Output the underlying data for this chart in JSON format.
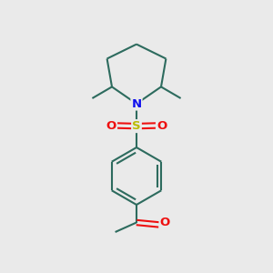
{
  "background_color": "#eaeaea",
  "bond_color": "#2d6b5e",
  "N_color": "#1010ee",
  "S_color": "#bbbb00",
  "O_color": "#ee1010",
  "line_width": 1.5,
  "figsize": [
    3.0,
    3.0
  ],
  "dpi": 100,
  "xlim": [
    0,
    10
  ],
  "ylim": [
    0,
    10
  ]
}
